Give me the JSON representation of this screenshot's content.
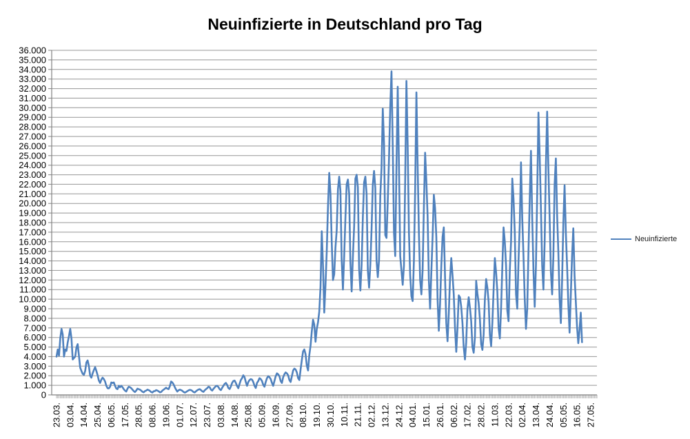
{
  "title": "Neuinfizierte in Deutschland pro Tag",
  "legend": {
    "label": "Neuinfizierte"
  },
  "colors": {
    "line": "#4F81BD",
    "grid": "#959595",
    "axis": "#808080",
    "text": "#000000",
    "background": "#FFFFFF"
  },
  "chart_data": {
    "type": "line",
    "title": "Neuinfizierte in Deutschland pro Tag",
    "grid": true,
    "legend_position": "right",
    "ylim": [
      0,
      36000
    ],
    "y_tick_step": 1000,
    "y_tick_labels": [
      "36.000",
      "35.000",
      "34.000",
      "33.000",
      "32.000",
      "31.000",
      "30.000",
      "29.000",
      "28.000",
      "27.000",
      "26.000",
      "25.000",
      "24.000",
      "23.000",
      "22.000",
      "21.000",
      "20.000",
      "19.000",
      "18.000",
      "17.000",
      "16.000",
      "15.000",
      "14.000",
      "13.000",
      "12.000",
      "11.000",
      "10.000",
      "9.000",
      "8.000",
      "7.000",
      "6.000",
      "5.000",
      "4.000",
      "3.000",
      "2.000",
      "1.000",
      "0"
    ],
    "x_tick_labels": [
      "23.03.",
      "03.04.",
      "14.04.",
      "25.04.",
      "06.05.",
      "17.05.",
      "28.05.",
      "08.06.",
      "19.06.",
      "01.07.",
      "12.07.",
      "23.07.",
      "03.08.",
      "14.08.",
      "25.08.",
      "05.09.",
      "16.09.",
      "27.09.",
      "08.10.",
      "19.10.",
      "30.10.",
      "10.11.",
      "21.11.",
      "02.12.",
      "13.12.",
      "24.12.",
      "04.01.",
      "15.01.",
      "26.01.",
      "06.02.",
      "17.02.",
      "28.02.",
      "11.03.",
      "22.03.",
      "02.04.",
      "13.04.",
      "24.04.",
      "05.05.",
      "16.05.",
      "27.05."
    ],
    "label_interval": 11,
    "total_categories": 435,
    "series": [
      {
        "name": "Neuinfizierte",
        "values": [
          4000,
          4750,
          4100,
          5900,
          6900,
          6300,
          4000,
          4750,
          4600,
          5500,
          6150,
          6900,
          5900,
          3700,
          3850,
          4000,
          4950,
          5300,
          4100,
          2850,
          2500,
          2200,
          2100,
          2500,
          3400,
          3600,
          3000,
          2000,
          1800,
          2250,
          2600,
          2900,
          2500,
          2050,
          1500,
          1250,
          1600,
          1800,
          1650,
          1400,
          950,
          700,
          680,
          850,
          1300,
          1250,
          1300,
          950,
          670,
          600,
          950,
          800,
          950,
          800,
          600,
          450,
          350,
          650,
          850,
          800,
          700,
          550,
          400,
          300,
          450,
          650,
          600,
          550,
          450,
          330,
          270,
          400,
          450,
          550,
          500,
          420,
          300,
          250,
          380,
          400,
          500,
          450,
          380,
          270,
          300,
          450,
          550,
          650,
          750,
          650,
          600,
          900,
          1400,
          1300,
          1100,
          800,
          550,
          350,
          480,
          550,
          500,
          430,
          310,
          240,
          300,
          390,
          470,
          530,
          500,
          420,
          300,
          260,
          380,
          480,
          560,
          600,
          500,
          380,
          320,
          480,
          600,
          700,
          850,
          800,
          560,
          450,
          630,
          780,
          920,
          950,
          820,
          600,
          500,
          740,
          950,
          1150,
          1250,
          1050,
          720,
          610,
          880,
          1250,
          1450,
          1500,
          1250,
          920,
          700,
          1150,
          1550,
          1750,
          2050,
          1850,
          1350,
          950,
          1350,
          1550,
          1650,
          1600,
          1350,
          950,
          720,
          1250,
          1450,
          1750,
          1650,
          1450,
          1050,
          850,
          1350,
          1750,
          1950,
          1850,
          1650,
          1250,
          950,
          1450,
          1950,
          2250,
          2150,
          1950,
          1450,
          1250,
          1850,
          2150,
          2350,
          2250,
          2050,
          1550,
          1350,
          1950,
          2550,
          2750,
          2650,
          2350,
          1750,
          1550,
          2650,
          3650,
          4550,
          4750,
          4250,
          3050,
          2550,
          4150,
          5150,
          6650,
          7850,
          7350,
          5550,
          6900,
          7600,
          8700,
          11300,
          17100,
          13500,
          8600,
          11500,
          15000,
          19700,
          23200,
          21000,
          16000,
          12000,
          12600,
          15400,
          17200,
          21500,
          22800,
          21300,
          14100,
          11000,
          14500,
          18500,
          22000,
          22500,
          21000,
          13800,
          10800,
          14400,
          17600,
          22600,
          23000,
          21700,
          13200,
          10900,
          13600,
          18600,
          22200,
          22800,
          21000,
          13000,
          11200,
          13600,
          17300,
          22000,
          23400,
          21600,
          14000,
          12300,
          14100,
          20800,
          23700,
          29900,
          26300,
          16700,
          16400,
          20200,
          24700,
          30100,
          33800,
          26000,
          16900,
          14500,
          24000,
          32200,
          24000,
          14500,
          13000,
          11500,
          13500,
          22500,
          32800,
          26000,
          17000,
          12500,
          10300,
          9800,
          14000,
          21500,
          31600,
          24000,
          17000,
          12000,
          10500,
          13000,
          19600,
          25300,
          22300,
          18700,
          12000,
          9000,
          12800,
          16500,
          20900,
          19500,
          16500,
          10000,
          6700,
          9500,
          13500,
          16500,
          17500,
          12300,
          7500,
          5600,
          8500,
          12100,
          14300,
          12500,
          10500,
          7000,
          4500,
          7000,
          10400,
          10200,
          9200,
          7500,
          5000,
          3700,
          5500,
          9000,
          10200,
          9100,
          7700,
          5000,
          4400,
          6000,
          11900,
          10600,
          9600,
          7900,
          5300,
          4700,
          6300,
          10000,
          12100,
          11200,
          9700,
          6300,
          5100,
          7500,
          11000,
          14300,
          12800,
          10800,
          7000,
          5900,
          9000,
          13400,
          17500,
          16000,
          13500,
          8800,
          7700,
          13000,
          16000,
          22600,
          20500,
          17000,
          10500,
          9000,
          14000,
          17800,
          24300,
          18500,
          14500,
          10000,
          6900,
          9000,
          15000,
          20400,
          25500,
          18500,
          13000,
          9200,
          13500,
          21000,
          29500,
          25000,
          19500,
          13500,
          11000,
          16000,
          24000,
          29600,
          23600,
          18500,
          12800,
          10500,
          14500,
          22000,
          24700,
          18800,
          14900,
          10000,
          7500,
          12000,
          18000,
          21900,
          17000,
          13500,
          9500,
          6500,
          10500,
          14500,
          17400,
          12500,
          9800,
          7100,
          5400,
          6800,
          8600,
          5500
        ]
      }
    ]
  }
}
